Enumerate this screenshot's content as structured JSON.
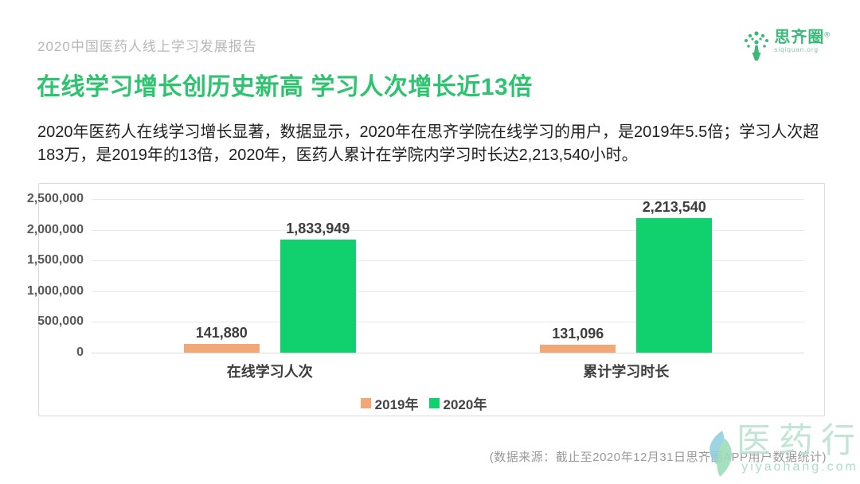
{
  "header": {
    "report_label": "2020中国医药人线上学习发展报告",
    "logo": {
      "name": "思齐圈",
      "reg_mark": "®",
      "subtext": "siqiquan.org"
    }
  },
  "title": "在线学习增长创历史新高 学习人次增长近13倍",
  "intro": "2020年医药人在线学习增长显著，数据显示，2020年在思齐学院在线学习的用户，是2019年5.5倍；学习人次超183万，是2019年的13倍，2020年，医药人累计在学院内学习时长达2,213,540小时。",
  "chart_data": {
    "type": "bar",
    "categories": [
      "在线学习人次",
      "累计学习时长"
    ],
    "series": [
      {
        "name": "2019年",
        "color": "#f2a876",
        "values": [
          141880,
          131096
        ],
        "labels": [
          "141,880",
          "131,096"
        ]
      },
      {
        "name": "2020年",
        "color": "#11d06e",
        "values": [
          1833949,
          2213540
        ],
        "labels": [
          "1,833,949",
          "2,213,540"
        ]
      }
    ],
    "ylim": [
      0,
      2500000
    ],
    "yticks": [
      "2,500,000",
      "2,000,000",
      "1,500,000",
      "1,000,000",
      "500,000",
      "0"
    ],
    "grid": true,
    "legend_position": "bottom"
  },
  "footer": {
    "source_note": "(数据来源：截止至2020年12月31日思齐圈APP用户数据统计)",
    "watermark": {
      "text": "医药行",
      "url": "yiyaohang.com"
    }
  },
  "colors": {
    "title_green": "#2ec46f",
    "bar_green": "#11d06e",
    "bar_orange": "#f2a876",
    "logo_green": "#3cb878",
    "watermark_green": "#b9e2cf"
  }
}
